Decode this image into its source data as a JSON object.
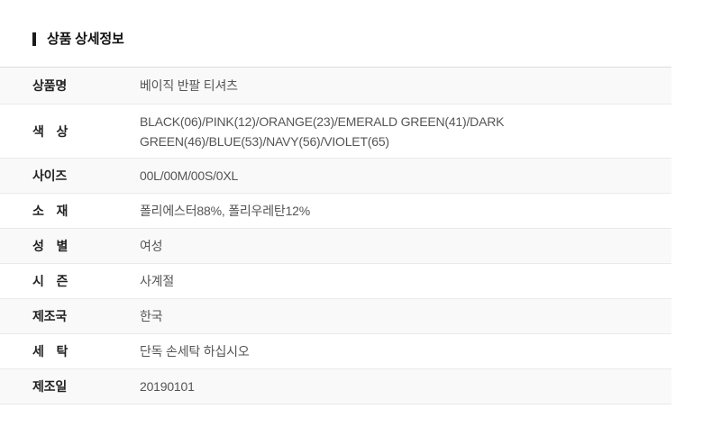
{
  "section": {
    "title": "상품 상세정보"
  },
  "table": {
    "rows": [
      {
        "label": "상품명",
        "value": "베이직 반팔 티셔츠"
      },
      {
        "label": "색　상",
        "value": "BLACK(06)/PINK(12)/ORANGE(23)/EMERALD GREEN(41)/DARK GREEN(46)/BLUE(53)/NAVY(56)/VIOLET(65)"
      },
      {
        "label": "사이즈",
        "value": "00L/00M/00S/0XL"
      },
      {
        "label": "소　재",
        "value": "폴리에스터88%, 폴리우레탄12%"
      },
      {
        "label": "성　별",
        "value": "여성"
      },
      {
        "label": "시　즌",
        "value": "사계절"
      },
      {
        "label": "제조국",
        "value": "한국"
      },
      {
        "label": "세　탁",
        "value": "단독 손세탁 하십시오"
      },
      {
        "label": "제조일",
        "value": "20190101"
      }
    ]
  },
  "colors": {
    "title_bar": "#1a1a1a",
    "row_stripe": "#f9f9f9",
    "row_border": "#eaeaea",
    "table_top_border": "#dddddd",
    "label_text": "#222222",
    "value_text": "#555555"
  }
}
